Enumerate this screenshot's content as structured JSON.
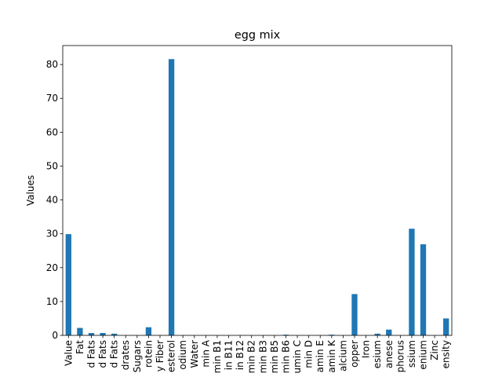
{
  "chart_data": {
    "type": "bar",
    "title": "egg mix",
    "xlabel": "",
    "ylabel": "Values",
    "ylim": [
      0,
      85.6
    ],
    "yticks": [
      0,
      10,
      20,
      30,
      40,
      50,
      60,
      70,
      80
    ],
    "grid": false,
    "legend": "none",
    "bar_color": "#1f77b4",
    "categories": [
      "Value",
      "Fat",
      "d Fats",
      "d Fats",
      "d Fats",
      "drates",
      "Sugars",
      "rotein",
      "y Fiber",
      "esterol",
      "odium",
      "Water",
      "min A",
      "min B1",
      "in B11",
      "in B12",
      "min B2",
      "min B3",
      "min B5",
      "min B6",
      "umin C",
      "min D",
      "amin E",
      "amin K",
      "alcium",
      "opper",
      "Iron",
      "esium",
      "anese",
      "phorus",
      "ssium",
      "enium",
      "Zinc",
      "ensity"
    ],
    "values": [
      29.9,
      2.2,
      0.7,
      0.7,
      0.5,
      0.0,
      0.0,
      2.4,
      0.0,
      81.6,
      0.0,
      0.0,
      0.0,
      0.0,
      0.0,
      0.0,
      0.0,
      0.0,
      0.0,
      0.2,
      0.0,
      0.0,
      0.0,
      0.2,
      0.0,
      12.2,
      0.0,
      0.5,
      1.7,
      0.0,
      31.5,
      26.9,
      0.0,
      5.0
    ]
  }
}
